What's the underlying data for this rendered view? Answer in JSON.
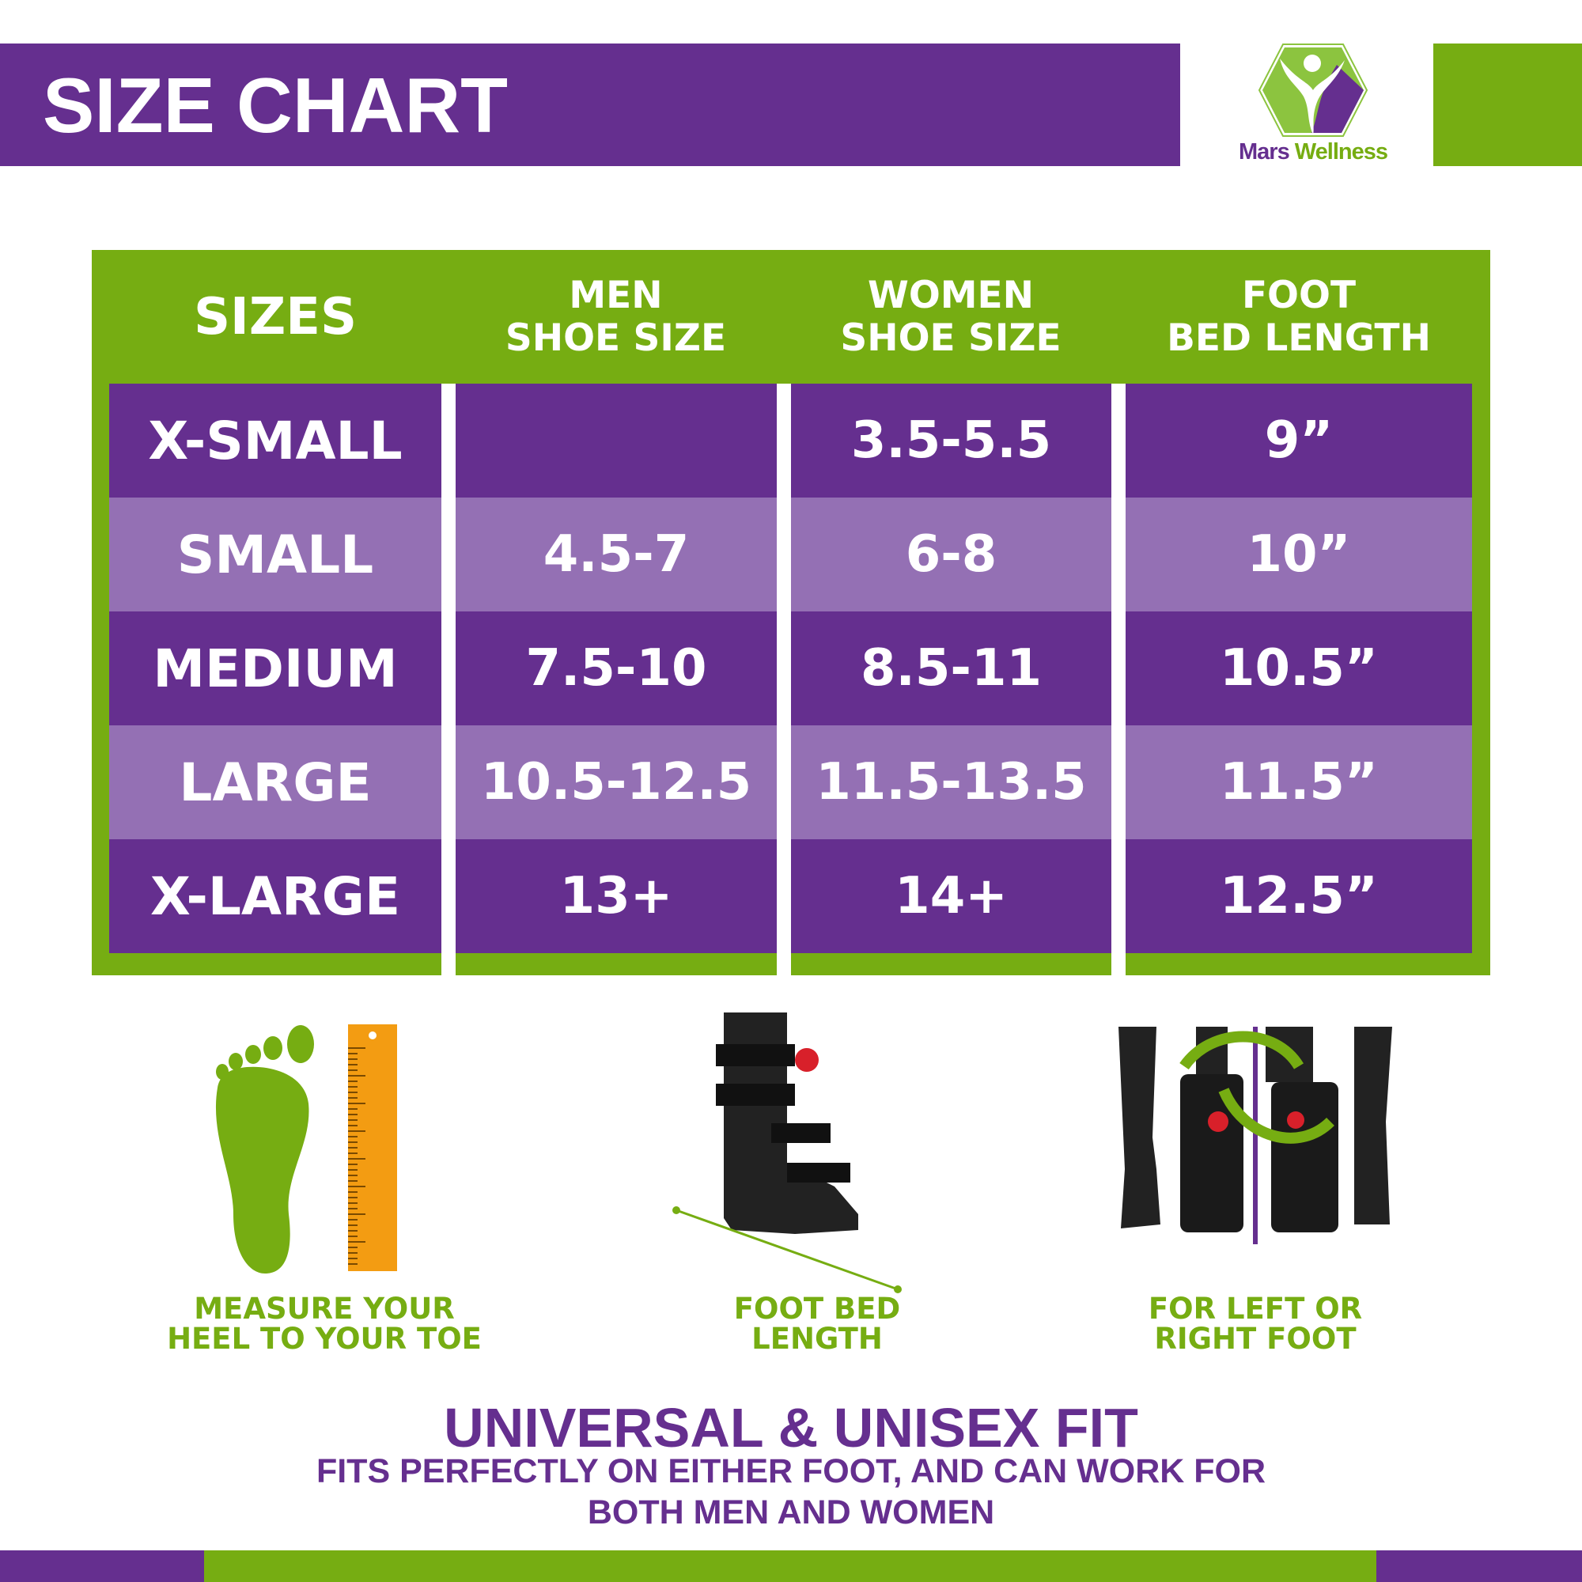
{
  "header": {
    "title": "SIZE CHART",
    "brand": "Mars Wellness",
    "brand_part1": "Mars",
    "brand_part2": "Wellness"
  },
  "colors": {
    "purple": "#652f8f",
    "light_purple": "#9470b4",
    "green": "#76ad12",
    "orange": "#f39c12"
  },
  "table": {
    "headers": [
      {
        "l1": "SIZES",
        "l2": ""
      },
      {
        "l1": "MEN",
        "l2": "SHOE SIZE"
      },
      {
        "l1": "WOMEN",
        "l2": "SHOE SIZE"
      },
      {
        "l1": "FOOT",
        "l2": "BED LENGTH"
      }
    ],
    "rows": [
      [
        "X-SMALL",
        "",
        "3.5-5.5",
        "9”"
      ],
      [
        "SMALL",
        "4.5-7",
        "6-8",
        "10”"
      ],
      [
        "MEDIUM",
        "7.5-10",
        "8.5-11",
        "10.5”"
      ],
      [
        "LARGE",
        "10.5-12.5",
        "11.5-13.5",
        "11.5”"
      ],
      [
        "X-LARGE",
        "13+",
        "14+",
        "12.5”"
      ]
    ]
  },
  "features": [
    {
      "icon": "foot-ruler-icon",
      "l1": "MEASURE YOUR",
      "l2": "HEEL TO YOUR TOE"
    },
    {
      "icon": "walking-boot-image",
      "l1": "FOOT BED",
      "l2": "LENGTH"
    },
    {
      "icon": "left-right-foot-image",
      "l1": "FOR LEFT OR",
      "l2": "RIGHT FOOT"
    }
  ],
  "footer": {
    "headline": "UNIVERSAL & UNISEX FIT",
    "line1": "FITS PERFECTLY ON EITHER FOOT, AND CAN WORK FOR",
    "line2": "BOTH MEN AND WOMEN"
  }
}
